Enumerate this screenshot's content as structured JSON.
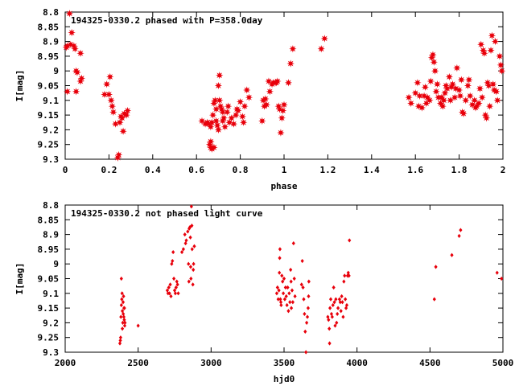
{
  "colors": {
    "points": "#e8000b",
    "frame": "#000000",
    "background": "#ffffff"
  },
  "chart_data": [
    {
      "type": "scatter",
      "title": "194325-0330.2 phased with P=358.0day",
      "xlabel": "phase",
      "ylabel": "I[mag]",
      "xlim": [
        0,
        2
      ],
      "ylim": [
        9.3,
        8.8
      ],
      "y_inverted": true,
      "grid": false,
      "marker": "star",
      "xticks": [
        0,
        0.2,
        0.4,
        0.6,
        0.8,
        1,
        1.2,
        1.4,
        1.6,
        1.8,
        2
      ],
      "xtick_labels": [
        "0",
        "0.2",
        "0.4",
        "0.6",
        "0.8",
        "1",
        "1.2",
        "1.4",
        "1.6",
        "1.8",
        "2"
      ],
      "yticks": [
        8.8,
        8.85,
        8.9,
        8.95,
        9.0,
        9.05,
        9.1,
        9.15,
        9.2,
        9.25,
        9.3
      ],
      "ytick_labels": [
        "8.8",
        "8.85",
        "8.9",
        "8.95",
        "9",
        "9.05",
        "9.1",
        "9.15",
        "9.2",
        "9.25",
        "9.3"
      ],
      "points": [
        [
          0.005,
          8.92
        ],
        [
          0.01,
          8.915
        ],
        [
          0.02,
          8.805
        ],
        [
          0.025,
          8.91
        ],
        [
          0.03,
          8.87
        ],
        [
          0.04,
          8.915
        ],
        [
          0.045,
          8.925
        ],
        [
          0.05,
          9.0
        ],
        [
          0.055,
          9.005
        ],
        [
          0.05,
          9.07
        ],
        [
          0.07,
          9.035
        ],
        [
          0.075,
          9.025
        ],
        [
          0.07,
          8.94
        ],
        [
          0.01,
          9.07
        ],
        [
          0.18,
          9.08
        ],
        [
          0.19,
          9.045
        ],
        [
          0.2,
          9.08
        ],
        [
          0.205,
          9.02
        ],
        [
          0.21,
          9.1
        ],
        [
          0.215,
          9.12
        ],
        [
          0.22,
          9.14
        ],
        [
          0.23,
          9.18
        ],
        [
          0.24,
          9.295
        ],
        [
          0.245,
          9.285
        ],
        [
          0.25,
          9.175
        ],
        [
          0.255,
          9.155
        ],
        [
          0.26,
          9.16
        ],
        [
          0.265,
          9.205
        ],
        [
          0.27,
          9.145
        ],
        [
          0.28,
          9.15
        ],
        [
          0.285,
          9.135
        ],
        [
          0.625,
          9.17
        ],
        [
          0.64,
          9.18
        ],
        [
          0.65,
          9.175
        ],
        [
          0.655,
          9.18
        ],
        [
          0.66,
          9.25
        ],
        [
          0.665,
          9.26
        ],
        [
          0.67,
          9.265
        ],
        [
          0.665,
          9.24
        ],
        [
          0.68,
          9.26
        ],
        [
          0.665,
          9.19
        ],
        [
          0.67,
          9.175
        ],
        [
          0.675,
          9.15
        ],
        [
          0.68,
          9.11
        ],
        [
          0.685,
          9.1
        ],
        [
          0.69,
          9.13
        ],
        [
          0.69,
          9.17
        ],
        [
          0.695,
          9.185
        ],
        [
          0.7,
          9.2
        ],
        [
          0.7,
          9.05
        ],
        [
          0.705,
          9.015
        ],
        [
          0.705,
          9.1
        ],
        [
          0.71,
          9.12
        ],
        [
          0.715,
          9.13
        ],
        [
          0.72,
          9.14
        ],
        [
          0.72,
          9.17
        ],
        [
          0.725,
          9.16
        ],
        [
          0.73,
          9.19
        ],
        [
          0.74,
          9.14
        ],
        [
          0.745,
          9.12
        ],
        [
          0.75,
          9.175
        ],
        [
          0.76,
          9.16
        ],
        [
          0.77,
          9.18
        ],
        [
          0.78,
          9.15
        ],
        [
          0.785,
          9.13
        ],
        [
          0.79,
          9.135
        ],
        [
          0.8,
          9.105
        ],
        [
          0.81,
          9.155
        ],
        [
          0.815,
          9.175
        ],
        [
          0.82,
          9.12
        ],
        [
          0.83,
          9.065
        ],
        [
          0.84,
          9.09
        ],
        [
          0.9,
          9.17
        ],
        [
          0.905,
          9.1
        ],
        [
          0.91,
          9.12
        ],
        [
          0.915,
          9.095
        ],
        [
          0.92,
          9.115
        ],
        [
          0.93,
          9.035
        ],
        [
          0.935,
          9.07
        ],
        [
          0.945,
          9.045
        ],
        [
          0.95,
          9.04
        ],
        [
          0.96,
          9.04
        ],
        [
          0.965,
          9.04
        ],
        [
          0.97,
          9.035
        ],
        [
          0.975,
          9.12
        ],
        [
          0.98,
          9.13
        ],
        [
          0.985,
          9.21
        ],
        [
          0.99,
          9.16
        ],
        [
          0.995,
          9.135
        ],
        [
          1.0,
          9.115
        ],
        [
          1.02,
          9.04
        ],
        [
          1.03,
          8.975
        ],
        [
          1.04,
          8.925
        ],
        [
          1.17,
          8.925
        ],
        [
          1.185,
          8.89
        ],
        [
          1.57,
          9.09
        ],
        [
          1.58,
          9.11
        ],
        [
          1.6,
          9.075
        ],
        [
          1.61,
          9.04
        ],
        [
          1.615,
          9.12
        ],
        [
          1.62,
          9.085
        ],
        [
          1.63,
          9.125
        ],
        [
          1.64,
          9.085
        ],
        [
          1.645,
          9.055
        ],
        [
          1.65,
          9.11
        ],
        [
          1.655,
          9.09
        ],
        [
          1.665,
          9.1
        ],
        [
          1.67,
          9.035
        ],
        [
          1.675,
          8.955
        ],
        [
          1.68,
          8.945
        ],
        [
          1.685,
          8.97
        ],
        [
          1.69,
          9.0
        ],
        [
          1.695,
          9.07
        ],
        [
          1.7,
          9.045
        ],
        [
          1.705,
          9.09
        ],
        [
          1.715,
          9.11
        ],
        [
          1.72,
          9.09
        ],
        [
          1.725,
          9.12
        ],
        [
          1.73,
          9.1
        ],
        [
          1.735,
          9.075
        ],
        [
          1.74,
          9.05
        ],
        [
          1.745,
          9.06
        ],
        [
          1.755,
          9.02
        ],
        [
          1.76,
          9.1
        ],
        [
          1.765,
          9.055
        ],
        [
          1.77,
          9.045
        ],
        [
          1.78,
          9.09
        ],
        [
          1.785,
          9.06
        ],
        [
          1.79,
          8.99
        ],
        [
          1.8,
          9.065
        ],
        [
          1.805,
          9.085
        ],
        [
          1.81,
          9.03
        ],
        [
          1.815,
          9.14
        ],
        [
          1.82,
          9.145
        ],
        [
          1.83,
          9.1
        ],
        [
          1.84,
          9.05
        ],
        [
          1.845,
          9.03
        ],
        [
          1.85,
          9.085
        ],
        [
          1.86,
          9.115
        ],
        [
          1.87,
          9.1
        ],
        [
          1.875,
          9.125
        ],
        [
          1.88,
          9.12
        ],
        [
          1.89,
          9.11
        ],
        [
          1.895,
          9.06
        ],
        [
          1.9,
          8.91
        ],
        [
          1.905,
          9.09
        ],
        [
          1.91,
          8.93
        ],
        [
          1.915,
          8.94
        ],
        [
          1.92,
          9.15
        ],
        [
          1.925,
          9.16
        ],
        [
          1.93,
          9.04
        ],
        [
          1.935,
          9.05
        ],
        [
          1.94,
          9.12
        ],
        [
          1.945,
          8.93
        ],
        [
          1.95,
          8.88
        ],
        [
          1.955,
          9.045
        ],
        [
          1.96,
          9.065
        ],
        [
          1.965,
          8.9
        ],
        [
          1.97,
          9.07
        ],
        [
          1.975,
          9.1
        ],
        [
          1.985,
          8.95
        ],
        [
          1.99,
          8.98
        ],
        [
          1.995,
          9.0
        ]
      ]
    },
    {
      "type": "scatter",
      "title": "194325-0330.2 not phased light curve",
      "xlabel": "hjd0",
      "ylabel": "I[mag]",
      "xlim": [
        2000,
        5000
      ],
      "ylim": [
        9.3,
        8.8
      ],
      "y_inverted": true,
      "grid": false,
      "marker": "diamond",
      "xticks": [
        2000,
        2500,
        3000,
        3500,
        4000,
        4500,
        5000
      ],
      "xtick_labels": [
        "2000",
        "2500",
        "3000",
        "3500",
        "4000",
        "4500",
        "5000"
      ],
      "yticks": [
        8.8,
        8.85,
        8.9,
        8.95,
        9.0,
        9.05,
        9.1,
        9.15,
        9.2,
        9.25,
        9.3
      ],
      "ytick_labels": [
        "8.8",
        "8.85",
        "8.9",
        "8.95",
        "9",
        "9.05",
        "9.1",
        "9.15",
        "9.2",
        "9.25",
        "9.3"
      ],
      "points": [
        [
          2375,
          9.27
        ],
        [
          2378,
          9.26
        ],
        [
          2380,
          9.25
        ],
        [
          2382,
          9.18
        ],
        [
          2385,
          9.14
        ],
        [
          2388,
          9.12
        ],
        [
          2390,
          9.1
        ],
        [
          2392,
          9.16
        ],
        [
          2395,
          9.2
        ],
        [
          2397,
          9.13
        ],
        [
          2400,
          9.11
        ],
        [
          2403,
          9.15
        ],
        [
          2405,
          9.19
        ],
        [
          2408,
          9.21
        ],
        [
          2385,
          9.05
        ],
        [
          2392,
          9.22
        ],
        [
          2398,
          9.17
        ],
        [
          2402,
          9.18
        ],
        [
          2406,
          9.15
        ],
        [
          2410,
          9.2
        ],
        [
          2500,
          9.21
        ],
        [
          2700,
          9.09
        ],
        [
          2705,
          9.1
        ],
        [
          2710,
          9.08
        ],
        [
          2715,
          9.1
        ],
        [
          2720,
          9.07
        ],
        [
          2725,
          9.11
        ],
        [
          2730,
          9.0
        ],
        [
          2735,
          8.99
        ],
        [
          2740,
          8.96
        ],
        [
          2745,
          9.05
        ],
        [
          2750,
          9.09
        ],
        [
          2755,
          9.1
        ],
        [
          2760,
          9.08
        ],
        [
          2765,
          9.06
        ],
        [
          2770,
          9.07
        ],
        [
          2775,
          9.1
        ],
        [
          2800,
          8.96
        ],
        [
          2810,
          8.95
        ],
        [
          2820,
          8.9
        ],
        [
          2825,
          8.93
        ],
        [
          2830,
          8.92
        ],
        [
          2840,
          8.89
        ],
        [
          2845,
          9.0
        ],
        [
          2848,
          9.06
        ],
        [
          2850,
          8.88
        ],
        [
          2855,
          8.875
        ],
        [
          2858,
          8.91
        ],
        [
          2860,
          9.01
        ],
        [
          2862,
          9.05
        ],
        [
          2865,
          8.805
        ],
        [
          2868,
          8.87
        ],
        [
          2870,
          8.95
        ],
        [
          2875,
          9.07
        ],
        [
          2878,
          9.02
        ],
        [
          2880,
          9.0
        ],
        [
          2885,
          8.94
        ],
        [
          3450,
          9.1
        ],
        [
          3455,
          9.08
        ],
        [
          3460,
          9.12
        ],
        [
          3465,
          9.09
        ],
        [
          3468,
          9.03
        ],
        [
          3470,
          8.98
        ],
        [
          3472,
          8.95
        ],
        [
          3475,
          9.12
        ],
        [
          3478,
          9.13
        ],
        [
          3480,
          9.14
        ],
        [
          3485,
          9.04
        ],
        [
          3490,
          9.06
        ],
        [
          3495,
          9.1
        ],
        [
          3500,
          9.05
        ],
        [
          3505,
          9.12
        ],
        [
          3510,
          9.08
        ],
        [
          3515,
          9.11
        ],
        [
          3520,
          9.14
        ],
        [
          3525,
          9.08
        ],
        [
          3530,
          9.16
        ],
        [
          3535,
          9.1
        ],
        [
          3540,
          9.13
        ],
        [
          3545,
          9.02
        ],
        [
          3548,
          9.06
        ],
        [
          3550,
          9.15
        ],
        [
          3555,
          9.09
        ],
        [
          3560,
          9.13
        ],
        [
          3565,
          8.93
        ],
        [
          3570,
          9.05
        ],
        [
          3575,
          9.11
        ],
        [
          3620,
          9.07
        ],
        [
          3625,
          8.99
        ],
        [
          3630,
          9.08
        ],
        [
          3635,
          9.12
        ],
        [
          3640,
          9.17
        ],
        [
          3645,
          9.23
        ],
        [
          3650,
          9.3
        ],
        [
          3655,
          9.2
        ],
        [
          3660,
          9.18
        ],
        [
          3665,
          9.15
        ],
        [
          3668,
          9.11
        ],
        [
          3670,
          9.06
        ],
        [
          3800,
          9.18
        ],
        [
          3805,
          9.19
        ],
        [
          3810,
          9.22
        ],
        [
          3812,
          9.27
        ],
        [
          3815,
          9.15
        ],
        [
          3820,
          9.12
        ],
        [
          3825,
          9.17
        ],
        [
          3830,
          9.18
        ],
        [
          3835,
          9.14
        ],
        [
          3840,
          9.08
        ],
        [
          3845,
          9.13
        ],
        [
          3850,
          9.21
        ],
        [
          3855,
          9.12
        ],
        [
          3860,
          9.2
        ],
        [
          3865,
          9.17
        ],
        [
          3870,
          9.15
        ],
        [
          3880,
          9.12
        ],
        [
          3885,
          9.13
        ],
        [
          3890,
          9.16
        ],
        [
          3895,
          9.11
        ],
        [
          3900,
          9.13
        ],
        [
          3905,
          9.18
        ],
        [
          3910,
          9.06
        ],
        [
          3915,
          9.04
        ],
        [
          3920,
          9.12
        ],
        [
          3925,
          9.15
        ],
        [
          3930,
          9.14
        ],
        [
          3935,
          9.04
        ],
        [
          3940,
          9.03
        ],
        [
          3945,
          9.04
        ],
        [
          3948,
          8.92
        ],
        [
          4530,
          9.12
        ],
        [
          4540,
          9.01
        ],
        [
          4650,
          8.97
        ],
        [
          4700,
          8.905
        ],
        [
          4710,
          8.885
        ],
        [
          4960,
          9.03
        ],
        [
          4990,
          9.05
        ]
      ]
    }
  ]
}
